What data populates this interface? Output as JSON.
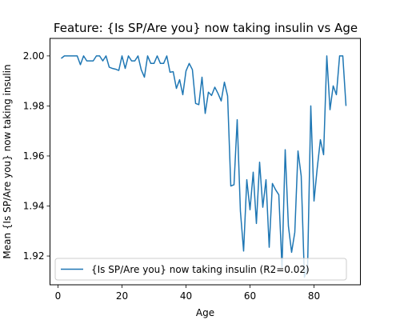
{
  "chart_data": {
    "type": "line",
    "title": "Feature: {Is SP/Are you} now taking insulin vs Age",
    "xlabel": "Age",
    "ylabel": "Mean {Is SP/Are you} now taking insulin",
    "xlim": [
      -2.5,
      94.5
    ],
    "ylim": [
      1.9085,
      2.007
    ],
    "xticks": [
      0,
      20,
      40,
      60,
      80
    ],
    "yticks": [
      1.92,
      1.94,
      1.96,
      1.98,
      2.0
    ],
    "ytick_labels": [
      "1.92",
      "1.94",
      "1.96",
      "1.98",
      "2.00"
    ],
    "grid": false,
    "legend_position": "lower-left",
    "color": "#1f77b4",
    "series": [
      {
        "name": "{Is SP/Are you} now taking insulin (R2=0.02)",
        "x": [
          1,
          2,
          3,
          4,
          5,
          6,
          7,
          8,
          9,
          10,
          11,
          12,
          13,
          14,
          15,
          16,
          17,
          18,
          19,
          20,
          21,
          22,
          23,
          24,
          25,
          26,
          27,
          28,
          29,
          30,
          31,
          32,
          33,
          34,
          35,
          36,
          37,
          38,
          39,
          40,
          41,
          42,
          43,
          44,
          45,
          46,
          47,
          48,
          49,
          50,
          51,
          52,
          53,
          54,
          55,
          56,
          57,
          58,
          59,
          60,
          61,
          62,
          63,
          64,
          65,
          66,
          67,
          68,
          69,
          70,
          71,
          72,
          73,
          74,
          75,
          76,
          77,
          78,
          79,
          80,
          81,
          82,
          83,
          84,
          85,
          86,
          87,
          88,
          89,
          90
        ],
        "values": [
          1.999,
          2.0,
          2.0,
          2.0,
          2.0,
          2.0,
          1.9965,
          2.0,
          1.998,
          1.998,
          1.998,
          2.0,
          2.0,
          1.998,
          2.0,
          1.9955,
          1.995,
          1.9947,
          1.9942,
          2.0,
          1.995,
          2.0,
          1.998,
          1.998,
          2.0,
          1.9945,
          1.9915,
          2.0,
          1.997,
          1.997,
          2.0,
          1.997,
          1.997,
          2.0,
          1.9935,
          1.9937,
          1.987,
          1.9905,
          1.9845,
          1.994,
          1.997,
          1.9945,
          1.981,
          1.9805,
          1.9915,
          1.977,
          1.9855,
          1.9842,
          1.9875,
          1.985,
          1.982,
          1.9895,
          1.984,
          1.948,
          1.9485,
          1.9745,
          1.938,
          1.922,
          1.9505,
          1.9385,
          1.9535,
          1.933,
          1.9575,
          1.9395,
          1.9505,
          1.9235,
          1.949,
          1.9465,
          1.9445,
          1.9155,
          1.9625,
          1.932,
          1.9215,
          1.9295,
          1.962,
          1.952,
          1.9115,
          1.9155,
          1.98,
          1.942,
          1.955,
          1.9665,
          1.9605,
          2.0,
          1.9785,
          1.988,
          1.9845,
          2.0,
          2.0,
          1.98
        ]
      }
    ]
  }
}
